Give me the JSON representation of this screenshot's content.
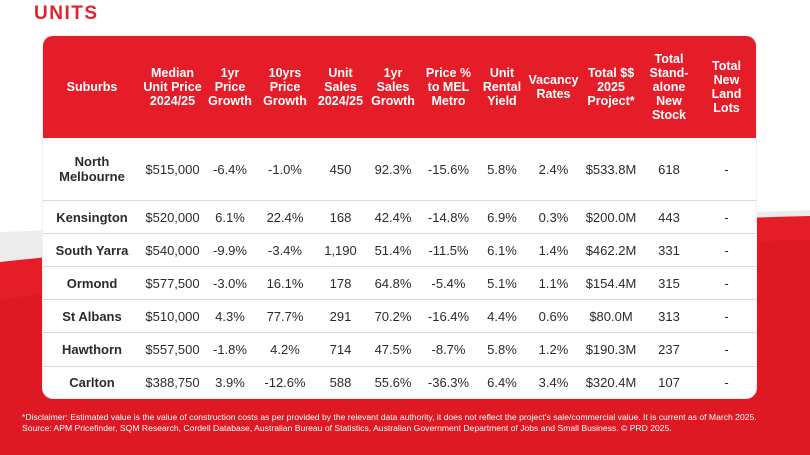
{
  "page_title": "UNITS",
  "colors": {
    "accent": "#e41d28",
    "title": "#e5202e"
  },
  "table": {
    "headers": [
      "Suburbs",
      "Median Unit Price 2024/25",
      "1yr Price Growth",
      "10yrs Price Growth",
      "Unit Sales 2024/25",
      "1yr Sales Growth",
      "Price % to MEL Metro",
      "Unit Rental Yield",
      "Vacancy Rates",
      "Total $$ 2025 Project*",
      "Total Stand-alone New Stock",
      "Total New Land Lots"
    ],
    "rows": [
      [
        "North Melbourne",
        "$515,000",
        "-6.4%",
        "-1.0%",
        "450",
        "92.3%",
        "-15.6%",
        "5.8%",
        "2.4%",
        "$533.8M",
        "618",
        "-"
      ],
      [
        "Kensington",
        "$520,000",
        "6.1%",
        "22.4%",
        "168",
        "42.4%",
        "-14.8%",
        "6.9%",
        "0.3%",
        "$200.0M",
        "443",
        "-"
      ],
      [
        "South Yarra",
        "$540,000",
        "-9.9%",
        "-3.4%",
        "1,190",
        "51.4%",
        "-11.5%",
        "6.1%",
        "1.4%",
        "$462.2M",
        "331",
        "-"
      ],
      [
        "Ormond",
        "$577,500",
        "-3.0%",
        "16.1%",
        "178",
        "64.8%",
        "-5.4%",
        "5.1%",
        "1.1%",
        "$154.4M",
        "315",
        "-"
      ],
      [
        "St Albans",
        "$510,000",
        "4.3%",
        "77.7%",
        "291",
        "70.2%",
        "-16.4%",
        "4.4%",
        "0.6%",
        "$80.0M",
        "313",
        "-"
      ],
      [
        "Hawthorn",
        "$557,500",
        "-1.8%",
        "4.2%",
        "714",
        "47.5%",
        "-8.7%",
        "5.8%",
        "1.2%",
        "$190.3M",
        "237",
        "-"
      ],
      [
        "Carlton",
        "$388,750",
        "3.9%",
        "-12.6%",
        "588",
        "55.6%",
        "-36.3%",
        "6.4%",
        "3.4%",
        "$320.4M",
        "107",
        "-"
      ]
    ]
  },
  "footnote": {
    "disclaimer": "*Disclaimer: Estimated value is the value of construction costs as per provided by the relevant data authority, it does not reflect the project's sale/commercial value. It is current as of March 2025.",
    "source": "Source: APM Pricefinder, SQM Research, Cordell Database, Australian Bureau of Statistics, Australian Government Department of Jobs and Small Business. © PRD 2025."
  }
}
